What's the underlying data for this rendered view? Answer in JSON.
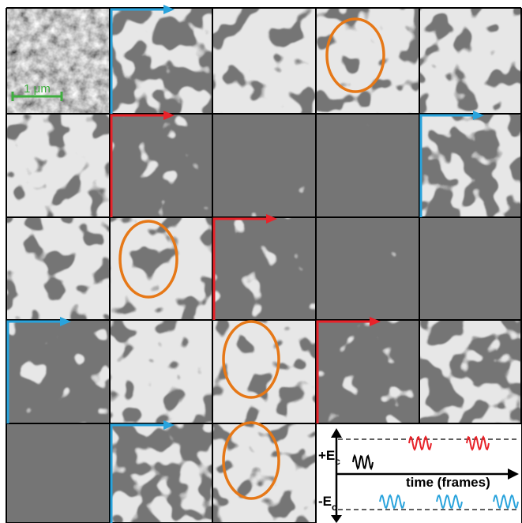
{
  "scale_bar": {
    "label": "1 μm"
  },
  "legend": {
    "positive_label": "+E",
    "negative_label": "-E",
    "subscript": "c",
    "axis_label": "time (frames)"
  }
}
